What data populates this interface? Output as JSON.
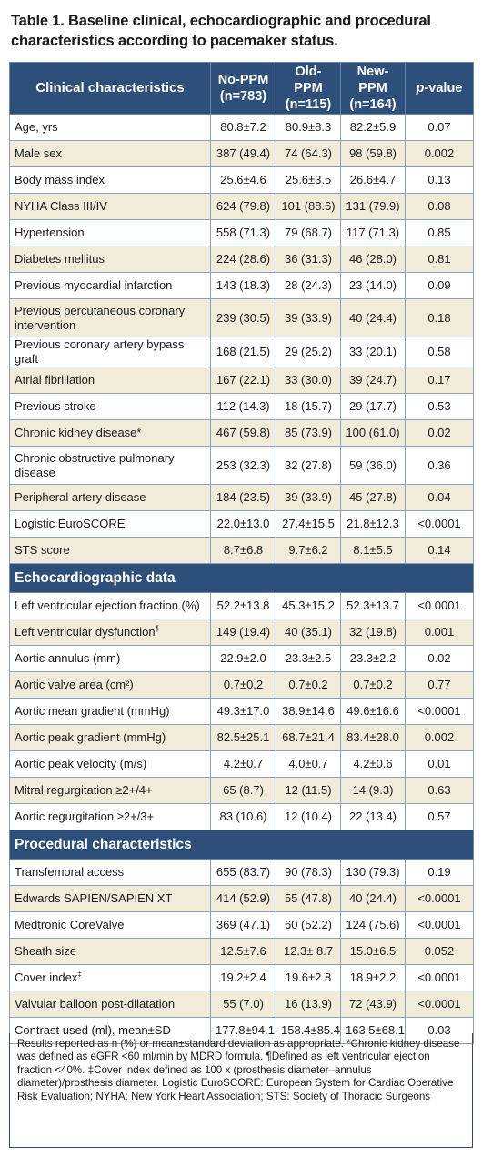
{
  "title": "Table 1. Baseline clinical, echocardiographic and procedural characteristics according to pacemaker status.",
  "columns": {
    "c0": "Clinical characteristics",
    "c1_line1": "No-PPM",
    "c1_line2": "(n=783)",
    "c2_line1": "Old-PPM",
    "c2_line2": "(n=115)",
    "c3_line1": "New-PPM",
    "c3_line2": "(n=164)",
    "c4_italic": "p",
    "c4_rest": "-value"
  },
  "sections": {
    "clinical": [
      {
        "label": "Age, yrs",
        "v1": "80.8±7.2",
        "v2": "80.9±8.3",
        "v3": "82.2±5.9",
        "p": "0.07"
      },
      {
        "label": "Male sex",
        "v1": "387 (49.4)",
        "v2": "74 (64.3)",
        "v3": "98 (59.8)",
        "p": "0.002"
      },
      {
        "label": "Body mass index",
        "v1": "25.6±4.6",
        "v2": "25.6±3.5",
        "v3": "26.6±4.7",
        "p": "0.13"
      },
      {
        "label": "NYHA Class III/IV",
        "v1": "624 (79.8)",
        "v2": "101 (88.6)",
        "v3": "131 (79.9)",
        "p": "0.08"
      },
      {
        "label": "Hypertension",
        "v1": "558 (71.3)",
        "v2": "79 (68.7)",
        "v3": "117 (71.3)",
        "p": "0.85"
      },
      {
        "label": "Diabetes mellitus",
        "v1": "224 (28.6)",
        "v2": "36 (31.3)",
        "v3": "46 (28.0)",
        "p": "0.81"
      },
      {
        "label": "Previous myocardial infarction",
        "v1": "143 (18.3)",
        "v2": "28 (24.3)",
        "v3": "23 (14.0)",
        "p": "0.09"
      },
      {
        "label": "Previous percutaneous coronary intervention",
        "v1": "239 (30.5)",
        "v2": "39 (33.9)",
        "v3": "40 (24.4)",
        "p": "0.18"
      },
      {
        "label": "Previous coronary artery bypass graft",
        "v1": "168 (21.5)",
        "v2": "29 (25.2)",
        "v3": "33 (20.1)",
        "p": "0.58"
      },
      {
        "label": "Atrial fibrillation",
        "v1": "167 (22.1)",
        "v2": "33 (30.0)",
        "v3": "39 (24.7)",
        "p": "0.17"
      },
      {
        "label": "Previous stroke",
        "v1": "112 (14.3)",
        "v2": "18 (15.7)",
        "v3": "29 (17.7)",
        "p": "0.53"
      },
      {
        "label": "Chronic kidney disease*",
        "v1": "467 (59.8)",
        "v2": "85 (73.9)",
        "v3": "100 (61.0)",
        "p": "0.02"
      },
      {
        "label": "Chronic obstructive pulmonary disease",
        "v1": "253 (32.3)",
        "v2": "32 (27.8)",
        "v3": "59 (36.0)",
        "p": "0.36"
      },
      {
        "label": "Peripheral artery disease",
        "v1": "184 (23.5)",
        "v2": "39 (33.9)",
        "v3": "45 (27.8)",
        "p": "0.04"
      },
      {
        "label": "Logistic EuroSCORE",
        "v1": "22.0±13.0",
        "v2": "27.4±15.5",
        "v3": "21.8±12.3",
        "p": "<0.0001"
      },
      {
        "label": "STS score",
        "v1": "8.7±6.8",
        "v2": "9.7±6.2",
        "v3": "8.1±5.5",
        "p": "0.14"
      }
    ],
    "echo_title": "Echocardiographic data",
    "echo": [
      {
        "label": "Left ventricular ejection fraction (%)",
        "v1": "52.2±13.8",
        "v2": "45.3±15.2",
        "v3": "52.3±13.7",
        "p": "<0.0001"
      },
      {
        "label": "Left ventricular dysfunction",
        "sup": "¶",
        "v1": "149 (19.4)",
        "v2": "40 (35.1)",
        "v3": "32 (19.8)",
        "p": "0.001"
      },
      {
        "label": "Aortic annulus (mm)",
        "v1": "22.9±2.0",
        "v2": "23.3±2.5",
        "v3": "23.3±2.2",
        "p": "0.02"
      },
      {
        "label": "Aortic valve area (cm²)",
        "v1": "0.7±0.2",
        "v2": "0.7±0.2",
        "v3": "0.7±0.2",
        "p": "0.77"
      },
      {
        "label": "Aortic mean gradient (mmHg)",
        "v1": "49.3±17.0",
        "v2": "38.9±14.6",
        "v3": "49.6±16.6",
        "p": "<0.0001"
      },
      {
        "label": "Aortic peak gradient (mmHg)",
        "v1": "82.5±25.1",
        "v2": "68.7±21.4",
        "v3": "83.4±28.0",
        "p": "0.002"
      },
      {
        "label": "Aortic peak velocity (m/s)",
        "v1": "4.2±0.7",
        "v2": "4.0±0.7",
        "v3": "4.2±0.6",
        "p": "0.01"
      },
      {
        "label": "Mitral regurgitation ≥2+/4+",
        "v1": "65 (8.7)",
        "v2": "12 (11.5)",
        "v3": "14 (9.3)",
        "p": "0.63"
      },
      {
        "label": "Aortic regurgitation ≥2+/3+",
        "v1": "83 (10.6)",
        "v2": "12 (10.4)",
        "v3": "22 (13.4)",
        "p": "0.57"
      }
    ],
    "proc_title": "Procedural characteristics",
    "proc": [
      {
        "label": "Transfemoral access",
        "v1": "655 (83.7)",
        "v2": "90 (78.3)",
        "v3": "130 (79.3)",
        "p": "0.19"
      },
      {
        "label": "Edwards SAPIEN/SAPIEN XT",
        "v1": "414 (52.9)",
        "v2": "55 (47.8)",
        "v3": "40 (24.4)",
        "p": "<0.0001"
      },
      {
        "label": "Medtronic CoreValve",
        "v1": "369 (47.1)",
        "v2": "60 (52.2)",
        "v3": "124 (75.6)",
        "p": "<0.0001"
      },
      {
        "label": "Sheath size",
        "v1": "12.5±7.6",
        "v2": "12.3± 8.7",
        "v3": "15.0±6.5",
        "p": "0.052"
      },
      {
        "label": "Cover index",
        "sup": "‡",
        "v1": "19.2±2.4",
        "v2": "19.6±2.8",
        "v3": "18.9±2.2",
        "p": "<0.0001"
      },
      {
        "label": "Valvular balloon post-dilatation",
        "v1": "55 (7.0)",
        "v2": "16 (13.9)",
        "v3": "72 (43.9)",
        "p": "<0.0001"
      },
      {
        "label": "Contrast used (ml), mean±SD",
        "v1": "177.8±94.1",
        "v2": "158.4±85.4",
        "v3": "163.5±68.1",
        "p": "0.03"
      }
    ]
  },
  "footnote": "Results reported as n (%) or mean±standard deviation as appropriate. *Chronic kidney disease was defined as eGFR <60 ml/min by MDRD formula. ¶Defined as left ventricular ejection fraction <40%. ‡Cover index defined as 100 x (prosthesis diameter–annulus diameter)/prosthesis diameter. Logistic EuroSCORE: European System for Cardiac Operative Risk Evaluation; NYHA: New York Heart Association; STS: Society of Thoracic Surgeons"
}
